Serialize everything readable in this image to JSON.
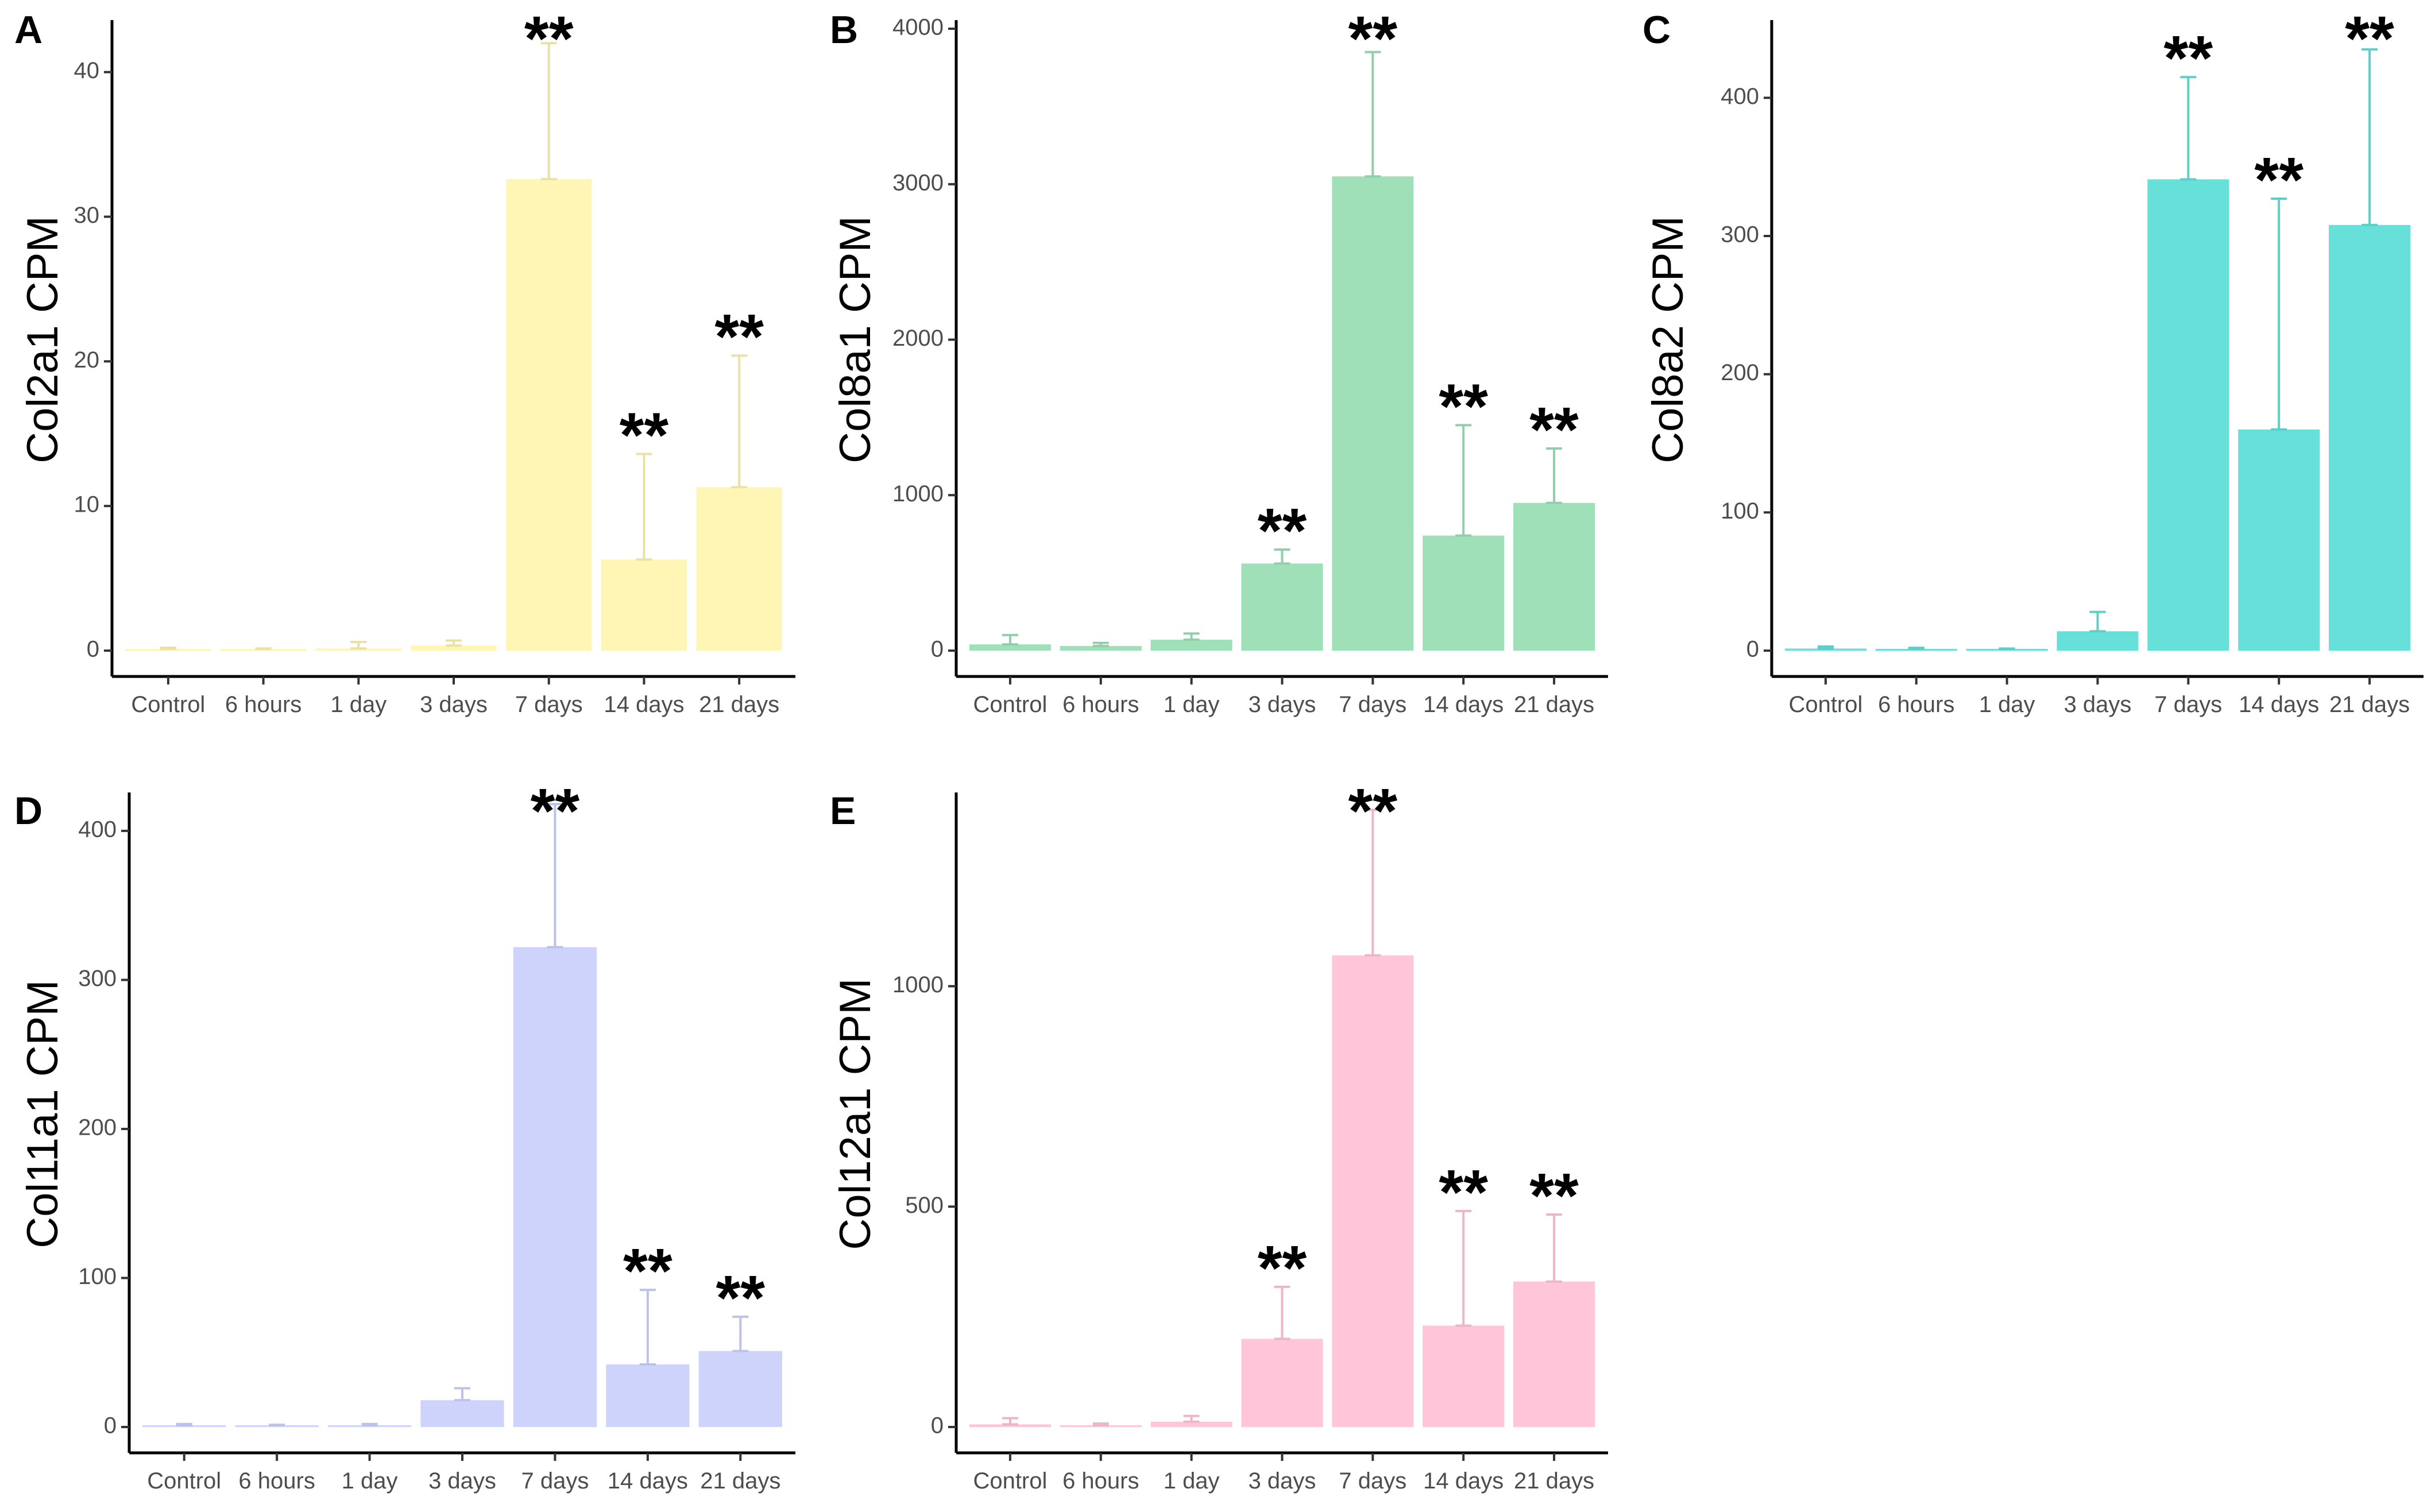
{
  "chart_data": [
    {
      "panel": "A",
      "type": "bar",
      "ylabel": "Col2a1 CPM",
      "xlabel": "",
      "categories": [
        "Control",
        "6 hours",
        "1 day",
        "3 days",
        "7 days",
        "14 days",
        "21 days"
      ],
      "values": [
        0.05,
        0.02,
        0.15,
        0.35,
        32.6,
        6.3,
        11.3
      ],
      "error_upper": [
        0.2,
        0.15,
        0.6,
        0.7,
        42.0,
        13.6,
        20.4
      ],
      "significance": [
        "",
        "",
        "",
        "",
        "**",
        "**",
        "**"
      ],
      "ylim": [
        0,
        43
      ],
      "yticks": [
        0,
        10,
        20,
        30,
        40
      ],
      "color": "#fff5b5"
    },
    {
      "panel": "B",
      "type": "bar",
      "ylabel": "Col8a1 CPM",
      "xlabel": "",
      "categories": [
        "Control",
        "6 hours",
        "1 day",
        "3 days",
        "7 days",
        "14 days",
        "21 days"
      ],
      "values": [
        40,
        30,
        70,
        560,
        3050,
        740,
        950
      ],
      "error_upper": [
        100,
        50,
        110,
        650,
        3850,
        1450,
        1300
      ],
      "significance": [
        "",
        "",
        "",
        "**",
        "**",
        "**",
        "**"
      ],
      "ylim": [
        0,
        4000
      ],
      "yticks": [
        0,
        1000,
        2000,
        3000,
        4000
      ],
      "color": "#9fe0b8"
    },
    {
      "panel": "C",
      "type": "bar",
      "ylabel": "Col8a2 CPM",
      "xlabel": "",
      "categories": [
        "Control",
        "6 hours",
        "1 day",
        "3 days",
        "7 days",
        "14 days",
        "21 days"
      ],
      "values": [
        1.5,
        1.0,
        0.5,
        14,
        341,
        160,
        308
      ],
      "error_upper": [
        3,
        2,
        1.5,
        28,
        415,
        327,
        435
      ],
      "significance": [
        "",
        "",
        "",
        "",
        "**",
        "**",
        "**"
      ],
      "ylim": [
        0,
        450
      ],
      "yticks": [
        0,
        100,
        200,
        300,
        400
      ],
      "color": "#66e0d8"
    },
    {
      "panel": "D",
      "type": "bar",
      "ylabel": "Col11a1 CPM",
      "xlabel": "",
      "categories": [
        "Control",
        "6 hours",
        "1 day",
        "3 days",
        "7 days",
        "14 days",
        "21 days"
      ],
      "values": [
        0.5,
        0.5,
        0.5,
        18,
        322,
        42,
        51
      ],
      "error_upper": [
        2,
        1.5,
        2,
        26,
        418,
        92,
        74
      ],
      "significance": [
        "",
        "",
        "",
        "",
        "**",
        "**",
        "**"
      ],
      "ylim": [
        0,
        420
      ],
      "yticks": [
        0,
        100,
        200,
        300,
        400
      ],
      "color": "#cdd3fb"
    },
    {
      "panel": "E",
      "type": "bar",
      "ylabel": "Col12a1 CPM",
      "xlabel": "",
      "categories": [
        "Control",
        "6 hours",
        "1 day",
        "3 days",
        "7 days",
        "14 days",
        "21 days"
      ],
      "values": [
        6,
        3,
        12,
        200,
        1070,
        230,
        330
      ],
      "error_upper": [
        20,
        8,
        25,
        318,
        1400,
        490,
        482
      ],
      "significance": [
        "",
        "",
        "",
        "**",
        "**",
        "**",
        "**"
      ],
      "ylim": [
        0,
        1420
      ],
      "yticks": [
        0,
        500,
        1000
      ],
      "color": "#ffc6da"
    }
  ]
}
